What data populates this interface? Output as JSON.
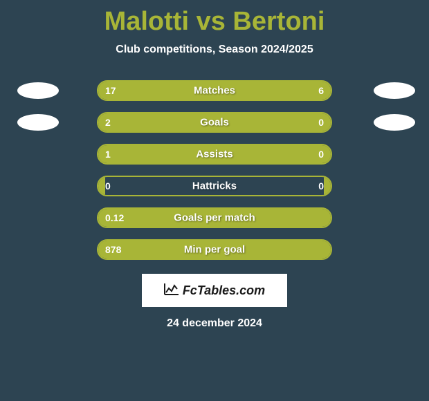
{
  "title_left": "Malotti",
  "title_vs": "vs",
  "title_right": "Bertoni",
  "subtitle": "Club competitions, Season 2024/2025",
  "colors": {
    "background": "#2d4452",
    "accent": "#a8b537",
    "text": "#ffffff",
    "logo_bg": "#ffffff"
  },
  "stats": [
    {
      "label": "Matches",
      "left_value": "17",
      "right_value": "6",
      "left_pct": 72,
      "right_pct": 28,
      "show_avatar": true
    },
    {
      "label": "Goals",
      "left_value": "2",
      "right_value": "0",
      "left_pct": 78,
      "right_pct": 22,
      "show_avatar": true
    },
    {
      "label": "Assists",
      "left_value": "1",
      "right_value": "0",
      "left_pct": 78,
      "right_pct": 22,
      "show_avatar": false
    },
    {
      "label": "Hattricks",
      "left_value": "0",
      "right_value": "0",
      "left_pct": 0,
      "right_pct": 0,
      "show_avatar": false
    },
    {
      "label": "Goals per match",
      "left_value": "0.12",
      "right_value": "",
      "left_pct": 100,
      "right_pct": 0,
      "show_avatar": false
    },
    {
      "label": "Min per goal",
      "left_value": "878",
      "right_value": "",
      "left_pct": 100,
      "right_pct": 0,
      "show_avatar": false
    }
  ],
  "logo_text": "FcTables.com",
  "date": "24 december 2024"
}
